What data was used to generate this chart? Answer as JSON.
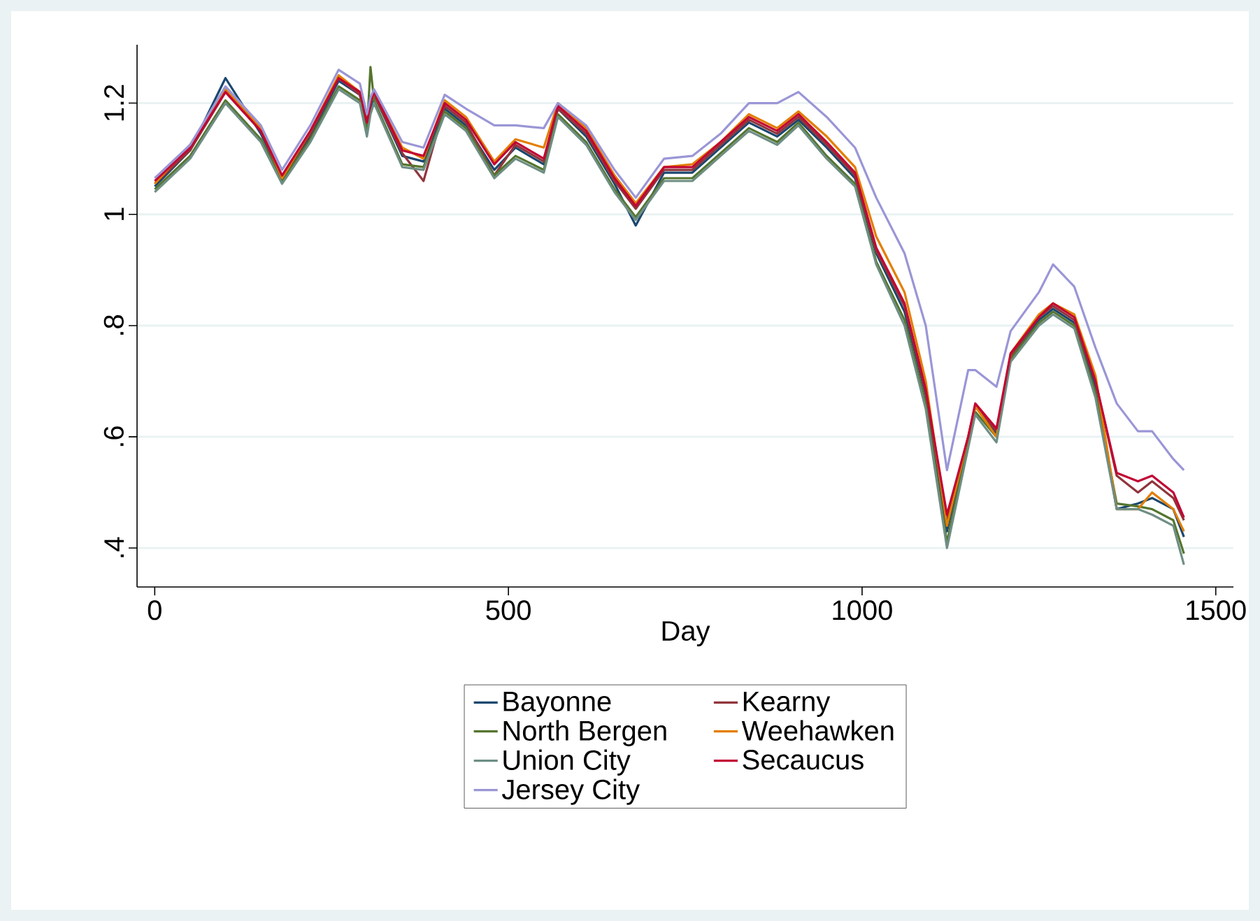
{
  "chart_data": {
    "type": "line",
    "xlabel": "Day",
    "x": [
      0,
      50,
      100,
      150,
      180,
      220,
      260,
      290,
      300,
      305,
      310,
      350,
      380,
      410,
      440,
      480,
      510,
      550,
      570,
      610,
      650,
      680,
      720,
      760,
      800,
      840,
      880,
      910,
      950,
      990,
      1020,
      1060,
      1090,
      1120,
      1150,
      1160,
      1190,
      1210,
      1250,
      1270,
      1300,
      1330,
      1360,
      1390,
      1410,
      1440,
      1455
    ],
    "xlim": [
      -25,
      1525
    ],
    "xticks": [
      0,
      500,
      1000,
      1500
    ],
    "ylim": [
      0.33,
      1.305
    ],
    "yticks": [
      {
        "value": 0.4,
        "label": ".4"
      },
      {
        "value": 0.6,
        "label": ".6"
      },
      {
        "value": 0.8,
        "label": ".8"
      },
      1,
      1.2
    ],
    "grid": "y",
    "legend": "bottom",
    "line_style": "solid",
    "marker": "none",
    "series": [
      {
        "name": "Bayonne",
        "color": "#1a476f",
        "values": [
          1.05,
          1.115,
          1.245,
          1.145,
          1.065,
          1.14,
          1.24,
          1.215,
          1.16,
          1.19,
          1.215,
          1.105,
          1.095,
          1.19,
          1.16,
          1.08,
          1.12,
          1.09,
          1.19,
          1.14,
          1.055,
          0.98,
          1.075,
          1.075,
          1.12,
          1.165,
          1.14,
          1.17,
          1.12,
          1.065,
          0.93,
          0.825,
          0.675,
          0.43,
          0.595,
          0.655,
          0.605,
          0.745,
          0.81,
          0.83,
          0.805,
          0.69,
          0.47,
          0.48,
          0.49,
          0.47,
          0.42
        ]
      },
      {
        "name": "Kearny",
        "color": "#90353b",
        "values": [
          1.055,
          1.115,
          1.22,
          1.15,
          1.065,
          1.145,
          1.245,
          1.215,
          1.16,
          1.2,
          1.215,
          1.11,
          1.06,
          1.195,
          1.165,
          1.07,
          1.125,
          1.095,
          1.19,
          1.145,
          1.06,
          1.01,
          1.08,
          1.08,
          1.125,
          1.17,
          1.145,
          1.175,
          1.125,
          1.07,
          0.935,
          0.835,
          0.68,
          0.45,
          0.6,
          0.655,
          0.61,
          0.745,
          0.815,
          0.835,
          0.81,
          0.7,
          0.53,
          0.5,
          0.52,
          0.49,
          0.45
        ]
      },
      {
        "name": "North Bergen",
        "color": "#55752f",
        "values": [
          1.045,
          1.105,
          1.205,
          1.135,
          1.06,
          1.135,
          1.23,
          1.205,
          1.15,
          1.265,
          1.205,
          1.09,
          1.085,
          1.185,
          1.155,
          1.07,
          1.105,
          1.08,
          1.18,
          1.13,
          1.045,
          0.995,
          1.065,
          1.065,
          1.11,
          1.155,
          1.13,
          1.165,
          1.105,
          1.055,
          0.915,
          0.81,
          0.66,
          0.41,
          0.59,
          0.645,
          0.6,
          0.74,
          0.805,
          0.825,
          0.8,
          0.68,
          0.48,
          0.475,
          0.47,
          0.45,
          0.39
        ]
      },
      {
        "name": "Weehawken",
        "color": "#e37e00",
        "values": [
          1.055,
          1.125,
          1.225,
          1.155,
          1.065,
          1.15,
          1.25,
          1.22,
          1.17,
          1.2,
          1.22,
          1.12,
          1.1,
          1.205,
          1.175,
          1.095,
          1.135,
          1.12,
          1.2,
          1.155,
          1.07,
          1.02,
          1.085,
          1.09,
          1.13,
          1.18,
          1.155,
          1.185,
          1.14,
          1.085,
          0.96,
          0.86,
          0.7,
          0.44,
          0.6,
          0.655,
          0.6,
          0.75,
          0.82,
          0.84,
          0.82,
          0.71,
          0.47,
          0.47,
          0.5,
          0.47,
          0.43
        ]
      },
      {
        "name": "Union City",
        "color": "#6e8e84",
        "values": [
          1.04,
          1.1,
          1.2,
          1.13,
          1.055,
          1.13,
          1.225,
          1.2,
          1.14,
          1.18,
          1.2,
          1.085,
          1.08,
          1.18,
          1.15,
          1.065,
          1.1,
          1.075,
          1.175,
          1.125,
          1.04,
          0.99,
          1.06,
          1.06,
          1.105,
          1.15,
          1.125,
          1.16,
          1.1,
          1.05,
          0.91,
          0.8,
          0.65,
          0.4,
          0.58,
          0.64,
          0.59,
          0.735,
          0.8,
          0.82,
          0.795,
          0.67,
          0.47,
          0.47,
          0.46,
          0.44,
          0.37
        ]
      },
      {
        "name": "Secaucus",
        "color": "#c10534",
        "values": [
          1.06,
          1.12,
          1.22,
          1.15,
          1.07,
          1.15,
          1.245,
          1.22,
          1.165,
          1.2,
          1.22,
          1.115,
          1.105,
          1.2,
          1.17,
          1.09,
          1.13,
          1.1,
          1.195,
          1.15,
          1.065,
          1.015,
          1.085,
          1.085,
          1.13,
          1.175,
          1.15,
          1.18,
          1.13,
          1.075,
          0.94,
          0.84,
          0.685,
          0.46,
          0.6,
          0.66,
          0.615,
          0.75,
          0.815,
          0.84,
          0.815,
          0.7,
          0.535,
          0.52,
          0.53,
          0.5,
          0.455
        ]
      },
      {
        "name": "Jersey City",
        "color": "#9a96d6",
        "values": [
          1.065,
          1.125,
          1.23,
          1.16,
          1.08,
          1.16,
          1.26,
          1.235,
          1.18,
          1.21,
          1.225,
          1.13,
          1.12,
          1.215,
          1.19,
          1.16,
          1.16,
          1.155,
          1.2,
          1.16,
          1.08,
          1.03,
          1.1,
          1.105,
          1.145,
          1.2,
          1.2,
          1.22,
          1.175,
          1.12,
          1.03,
          0.93,
          0.8,
          0.54,
          0.72,
          0.72,
          0.69,
          0.79,
          0.86,
          0.91,
          0.87,
          0.76,
          0.66,
          0.61,
          0.61,
          0.56,
          0.54
        ]
      }
    ]
  }
}
